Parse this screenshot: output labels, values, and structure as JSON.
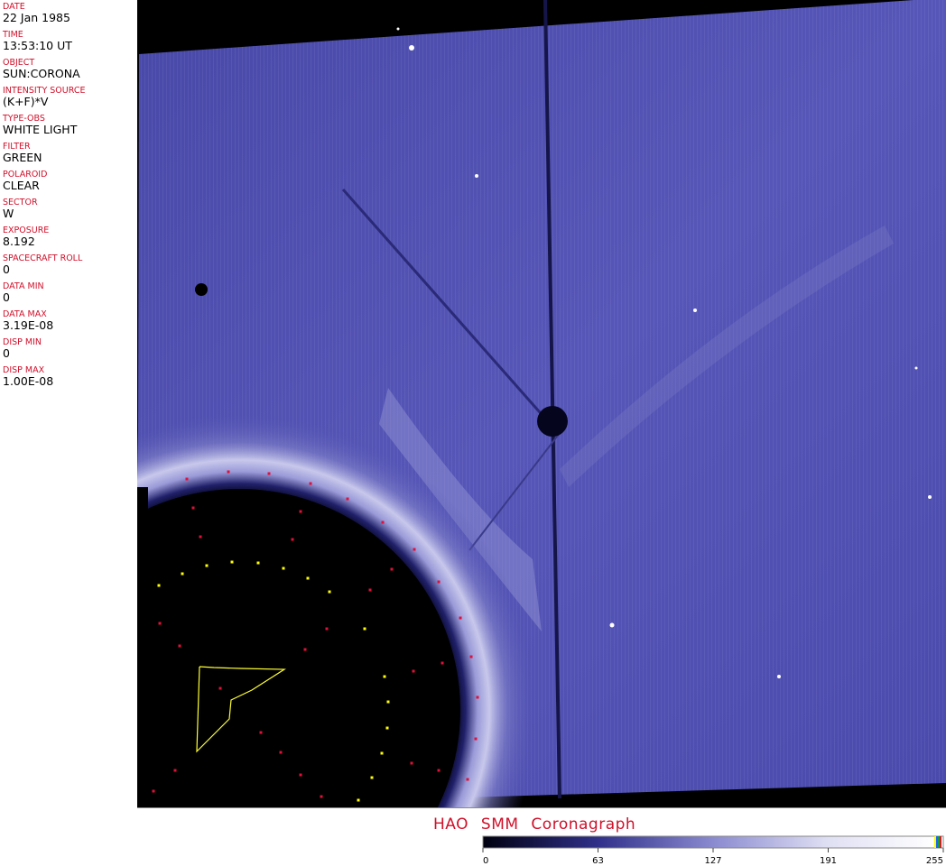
{
  "header_fields": [
    {
      "label": "DATE",
      "value": "22 Jan 1985"
    },
    {
      "label": "TIME",
      "value": "13:53:10 UT"
    },
    {
      "label": "OBJECT",
      "value": "SUN:CORONA"
    },
    {
      "label": "INTENSITY SOURCE",
      "value": "(K+F)*V"
    },
    {
      "label": "TYPE-OBS",
      "value": "WHITE LIGHT"
    },
    {
      "label": "FILTER",
      "value": "GREEN"
    },
    {
      "label": "POLAROID",
      "value": "CLEAR"
    },
    {
      "label": "SECTOR",
      "value": "W"
    },
    {
      "label": "EXPOSURE",
      "value": "8.192"
    },
    {
      "label": "SPACECRAFT ROLL",
      "value": "0"
    },
    {
      "label": "DATA MIN",
      "value": "0"
    },
    {
      "label": "DATA MAX",
      "value": "3.19E-08"
    },
    {
      "label": "DISP MIN",
      "value": "0"
    },
    {
      "label": "DISP MAX",
      "value": "1.00E-08"
    }
  ],
  "caption": "HAO  SMM Coronagraph",
  "colorbar": {
    "ticks": [
      "0",
      "63",
      "127",
      "191",
      "255"
    ],
    "colors": [
      "#000010",
      "#30308a",
      "#8a8ad0",
      "#e8e8f6",
      "#ffffff"
    ]
  },
  "colors": {
    "label": "#d0102a",
    "corona": "#4a4ab0",
    "markers_yellow": "#ffff00",
    "markers_red": "#e0103a"
  }
}
